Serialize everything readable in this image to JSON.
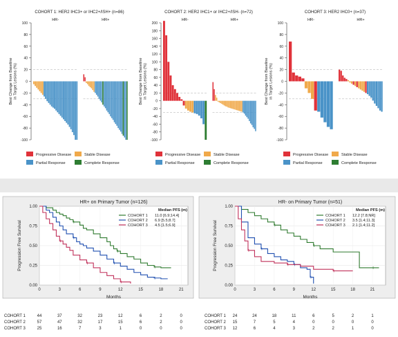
{
  "colors": {
    "progressive": "#e0323a",
    "stable": "#f0a94a",
    "partial": "#4a93c8",
    "complete": "#2e7d32",
    "cohort1": "#2f7a2f",
    "cohort2": "#1f4fb0",
    "cohort3": "#c0305a",
    "panel_bg": "#eeeeee"
  },
  "chart_data": [
    {
      "type": "bar",
      "title": "COHORT 1: HER2 IHC3+ or IHC2+/ISH+ (n=86)",
      "ylabel": "Best Change from Baseline in Target Lesions (%)",
      "ylim": [
        -100,
        100
      ],
      "yticks": [
        "100",
        "80",
        "60",
        "40",
        "20",
        "0",
        "-20",
        "-40",
        "-60",
        "-80",
        "-100"
      ],
      "groups": [
        {
          "label": "HR-",
          "values": [
            -5,
            -8,
            -11,
            -14,
            -17,
            -20,
            -23,
            -26,
            -30,
            -34,
            -37,
            -40,
            -43,
            -45,
            -47,
            -50,
            -53,
            -56,
            -59,
            -62,
            -65,
            -68,
            -71,
            -74,
            -78,
            -82,
            -87,
            -92,
            -100,
            -100
          ],
          "categories": [
            "stable",
            "stable",
            "stable",
            "stable",
            "stable",
            "stable",
            "stable",
            "partial",
            "partial",
            "partial",
            "partial",
            "partial",
            "partial",
            "partial",
            "partial",
            "partial",
            "partial",
            "partial",
            "partial",
            "partial",
            "partial",
            "partial",
            "partial",
            "partial",
            "partial",
            "partial",
            "partial",
            "partial",
            "partial",
            "partial"
          ]
        },
        {
          "label": "HR+",
          "values": [
            12,
            7,
            -3,
            -5,
            -8,
            -10,
            -12,
            -15,
            -18,
            -20,
            -23,
            -26,
            -30,
            -33,
            -36,
            -40,
            -43,
            -46,
            -50,
            -53,
            -56,
            -60,
            -63,
            -66,
            -70,
            -73,
            -76,
            -80,
            -83,
            -86,
            -90,
            -93,
            -96,
            -100,
            -100
          ],
          "categories": [
            "progressive",
            "progressive",
            "stable",
            "stable",
            "stable",
            "stable",
            "stable",
            "stable",
            "stable",
            "partial",
            "partial",
            "partial",
            "partial",
            "partial",
            "partial",
            "complete",
            "partial",
            "partial",
            "partial",
            "partial",
            "partial",
            "partial",
            "partial",
            "partial",
            "partial",
            "partial",
            "partial",
            "partial",
            "partial",
            "partial",
            "partial",
            "complete",
            "partial",
            "partial",
            "complete"
          ]
        }
      ],
      "reference_lines": [
        20,
        -30
      ],
      "legend": [
        "Progressive Disease",
        "Stable Disease",
        "Partial Response",
        "Complete Response"
      ]
    },
    {
      "type": "bar",
      "title": "COHORT 2: HER2 IHC1+ or IHC2+/ISH- (n=72)",
      "ylabel": "Best Change from Baseline in Target Lesions (%)",
      "ylim": [
        -100,
        200
      ],
      "yticks": [
        "200",
        "180",
        "160",
        "140",
        "120",
        "100",
        "80",
        "60",
        "40",
        "20",
        "0",
        "-20",
        "-40",
        "-60",
        "-80",
        "-100"
      ],
      "groups": [
        {
          "label": "HR-",
          "values": [
            205,
            168,
            100,
            65,
            40,
            30,
            20,
            10,
            4,
            -12,
            -20,
            -25,
            -28,
            -30,
            -32,
            -34,
            -38,
            -45,
            -60,
            -100
          ],
          "categories": [
            "progressive",
            "progressive",
            "progressive",
            "progressive",
            "progressive",
            "progressive",
            "progressive",
            "progressive",
            "progressive",
            "progressive",
            "stable",
            "stable",
            "stable",
            "stable",
            "partial",
            "partial",
            "partial",
            "partial",
            "partial",
            "complete"
          ]
        },
        {
          "label": "HR+",
          "values": [
            48,
            30,
            15,
            8,
            -2,
            -4,
            -6,
            -8,
            -10,
            -12,
            -14,
            -15,
            -17,
            -18,
            -19,
            -20,
            -21,
            -22,
            -23,
            -24,
            -25,
            -26,
            -27,
            -28,
            -30,
            -33,
            -38,
            -42,
            -46,
            -52,
            -58,
            -62,
            -68,
            -72,
            -78
          ],
          "categories": [
            "progressive",
            "progressive",
            "stable",
            "stable",
            "stable",
            "stable",
            "stable",
            "stable",
            "stable",
            "stable",
            "stable",
            "stable",
            "stable",
            "stable",
            "stable",
            "stable",
            "stable",
            "stable",
            "stable",
            "stable",
            "stable",
            "stable",
            "stable",
            "stable",
            "partial",
            "partial",
            "partial",
            "partial",
            "partial",
            "partial",
            "partial",
            "partial",
            "partial",
            "partial",
            "partial"
          ]
        }
      ],
      "reference_lines": [
        20,
        -30
      ],
      "legend": [
        "Progressive Disease",
        "Stable Disease",
        "Partial Response",
        "Complete Response"
      ]
    },
    {
      "type": "bar",
      "title": "COHORT 3: HER2 IHC0+ (n=37)",
      "ylabel": "Best Change from Baseline in Target Lesions (%)",
      "ylim": [
        -100,
        100
      ],
      "yticks": [
        "100",
        "80",
        "60",
        "40",
        "20",
        "0",
        "-20",
        "-40",
        "-60",
        "-80",
        "-100"
      ],
      "groups": [
        {
          "label": "HR-",
          "values": [
            68,
            15,
            10,
            8,
            5,
            -12,
            -20,
            -30,
            -50,
            -52,
            -62,
            -70,
            -78,
            -82
          ],
          "categories": [
            "progressive",
            "progressive",
            "progressive",
            "progressive",
            "progressive",
            "stable",
            "stable",
            "stable",
            "progressive",
            "partial",
            "partial",
            "partial",
            "partial",
            "partial"
          ]
        },
        {
          "label": "HR+",
          "values": [
            20,
            18,
            10,
            6,
            4,
            2,
            -2,
            -4,
            -6,
            -8,
            -10,
            -12,
            -14,
            -16,
            -18,
            -20,
            -22,
            -25,
            -28,
            -33,
            -38,
            -42,
            -46,
            -50,
            -52
          ],
          "categories": [
            "progressive",
            "progressive",
            "progressive",
            "progressive",
            "progressive",
            "stable",
            "stable",
            "stable",
            "progressive",
            "stable",
            "progressive",
            "stable",
            "stable",
            "stable",
            "stable",
            "progressive",
            "partial",
            "partial",
            "partial",
            "partial",
            "partial",
            "partial",
            "partial",
            "partial",
            "partial"
          ]
        }
      ],
      "reference_lines": [
        20,
        -30
      ],
      "legend": [
        "Progressive Disease",
        "Stable Disease",
        "Partial Response",
        "Complete Response"
      ]
    },
    {
      "type": "line",
      "title": "HR+ on Primary Tumor (n=126)",
      "xlabel": "Months",
      "ylabel": "Progression Free Survival",
      "xlim": [
        0,
        22
      ],
      "ylim": [
        0,
        1
      ],
      "xticks": [
        "0",
        "3",
        "6",
        "9",
        "12",
        "15",
        "18",
        "21"
      ],
      "yticks": [
        "0.00",
        "0.25",
        "0.50",
        "0.75",
        "1.00"
      ],
      "legend_title": "Median PFS (m)",
      "series": [
        {
          "name": "COHORT 1",
          "median": "11.0 [6.9;14.4]",
          "x": [
            0,
            1,
            2,
            2.5,
            3,
            3.5,
            4,
            4.5,
            5,
            6,
            6.5,
            7,
            8,
            9,
            10,
            10.5,
            11,
            11.5,
            12,
            13,
            14,
            15,
            16,
            17,
            18,
            19.5
          ],
          "y": [
            1,
            0.98,
            0.95,
            0.92,
            0.9,
            0.88,
            0.85,
            0.83,
            0.8,
            0.76,
            0.72,
            0.7,
            0.65,
            0.6,
            0.55,
            0.5,
            0.46,
            0.43,
            0.4,
            0.36,
            0.33,
            0.28,
            0.25,
            0.23,
            0.22,
            0.22
          ]
        },
        {
          "name": "COHORT 2",
          "median": "6.9 [5.5;8.7]",
          "x": [
            0,
            1,
            1.5,
            2,
            2.5,
            3,
            3.5,
            4,
            5,
            5.5,
            6,
            6.5,
            7,
            8,
            9,
            10,
            11,
            12,
            13,
            14,
            15,
            16,
            17,
            18,
            19
          ],
          "y": [
            1,
            0.95,
            0.92,
            0.86,
            0.8,
            0.75,
            0.7,
            0.65,
            0.6,
            0.55,
            0.52,
            0.5,
            0.47,
            0.43,
            0.38,
            0.33,
            0.28,
            0.24,
            0.2,
            0.16,
            0.13,
            0.1,
            0.09,
            0.08,
            0.08
          ]
        },
        {
          "name": "COHORT 3",
          "median": "4.5 [1.5;6.9]",
          "x": [
            0,
            0.5,
            1,
            1.5,
            2,
            2.5,
            3,
            3.5,
            4,
            4.5,
            5,
            6,
            7,
            8,
            9,
            10,
            11,
            12,
            13.5
          ],
          "y": [
            1,
            0.92,
            0.84,
            0.78,
            0.7,
            0.62,
            0.56,
            0.52,
            0.48,
            0.44,
            0.38,
            0.32,
            0.28,
            0.22,
            0.16,
            0.12,
            0.08,
            0.04,
            0.02
          ]
        }
      ],
      "risk_table": {
        "times": [
          "0",
          "3",
          "6",
          "9",
          "12",
          "15",
          "18",
          "21"
        ],
        "rows": [
          {
            "name": "COHORT 1",
            "counts": [
              "44",
              "37",
              "32",
              "23",
              "12",
              "6",
              "2",
              "0"
            ]
          },
          {
            "name": "COHORT 2",
            "counts": [
              "57",
              "47",
              "32",
              "17",
              "15",
              "6",
              "2",
              "0"
            ]
          },
          {
            "name": "COHORT 3",
            "counts": [
              "25",
              "16",
              "7",
              "3",
              "1",
              "0",
              "0",
              "0"
            ]
          }
        ]
      }
    },
    {
      "type": "line",
      "title": "HR- on Primary Tumor (n=51)",
      "xlabel": "Months",
      "ylabel": "Progression Free Survival",
      "xlim": [
        0,
        23
      ],
      "ylim": [
        0,
        1
      ],
      "xticks": [
        "0",
        "3",
        "6",
        "9",
        "12",
        "15",
        "18",
        "21"
      ],
      "yticks": [
        "0.00",
        "0.25",
        "0.50",
        "0.75",
        "1.00"
      ],
      "legend_title": "Median PFS (m)",
      "series": [
        {
          "name": "COHORT 1",
          "median": "12.2 [7.8;NR]",
          "x": [
            0,
            1,
            2,
            3,
            4,
            5,
            6,
            7,
            8,
            9,
            10,
            11,
            12,
            13,
            15,
            18,
            19,
            21,
            22
          ],
          "y": [
            1,
            0.96,
            0.92,
            0.88,
            0.84,
            0.8,
            0.76,
            0.7,
            0.66,
            0.62,
            0.58,
            0.54,
            0.5,
            0.46,
            0.42,
            0.42,
            0.22,
            0.22,
            0.22
          ]
        },
        {
          "name": "COHORT 2",
          "median": "3.5 [1.4;11.3]",
          "x": [
            0,
            1,
            2,
            3,
            4,
            5,
            6,
            7,
            8,
            9,
            10,
            11,
            11.5,
            12
          ],
          "y": [
            1,
            0.8,
            0.6,
            0.52,
            0.46,
            0.4,
            0.36,
            0.32,
            0.3,
            0.26,
            0.22,
            0.2,
            0.1,
            0.02
          ]
        },
        {
          "name": "COHORT 3",
          "median": "2.1 [1.4;11.2]",
          "x": [
            0,
            0.5,
            1,
            1.5,
            2,
            3,
            4,
            6,
            8,
            10,
            12,
            15,
            18
          ],
          "y": [
            1,
            0.84,
            0.7,
            0.56,
            0.44,
            0.36,
            0.3,
            0.28,
            0.26,
            0.24,
            0.2,
            0.18,
            0.18
          ]
        }
      ],
      "risk_table": {
        "times": [
          "0",
          "3",
          "6",
          "9",
          "12",
          "15",
          "18",
          "21"
        ],
        "rows": [
          {
            "name": "COHORT 1",
            "counts": [
              "24",
              "24",
              "18",
              "11",
              "6",
              "5",
              "2",
              "1"
            ]
          },
          {
            "name": "COHORT 2",
            "counts": [
              "15",
              "7",
              "5",
              "4",
              "0",
              "0",
              "0",
              "0"
            ]
          },
          {
            "name": "COHORT 3",
            "counts": [
              "12",
              "6",
              "4",
              "3",
              "2",
              "2",
              "1",
              "0"
            ]
          }
        ]
      }
    }
  ]
}
